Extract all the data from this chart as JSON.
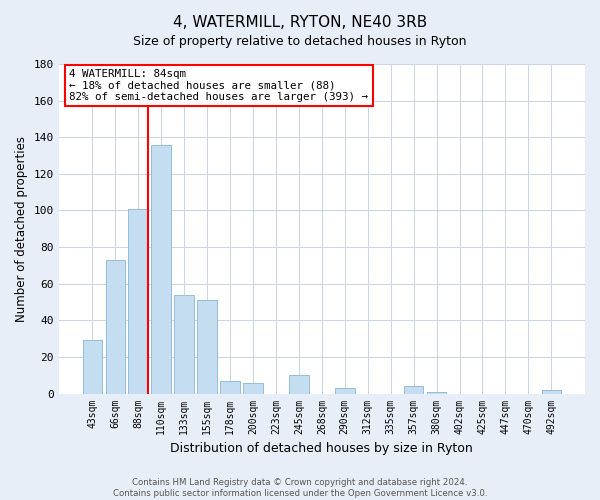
{
  "title": "4, WATERMILL, RYTON, NE40 3RB",
  "subtitle": "Size of property relative to detached houses in Ryton",
  "xlabel": "Distribution of detached houses by size in Ryton",
  "ylabel": "Number of detached properties",
  "bar_color": "#c5ddf0",
  "bar_edge_color": "#8ab4d4",
  "categories": [
    "43sqm",
    "66sqm",
    "88sqm",
    "110sqm",
    "133sqm",
    "155sqm",
    "178sqm",
    "200sqm",
    "223sqm",
    "245sqm",
    "268sqm",
    "290sqm",
    "312sqm",
    "335sqm",
    "357sqm",
    "380sqm",
    "402sqm",
    "425sqm",
    "447sqm",
    "470sqm",
    "492sqm"
  ],
  "values": [
    29,
    73,
    101,
    136,
    54,
    51,
    7,
    6,
    0,
    10,
    0,
    3,
    0,
    0,
    4,
    1,
    0,
    0,
    0,
    0,
    2
  ],
  "ylim": [
    0,
    180
  ],
  "yticks": [
    0,
    20,
    40,
    60,
    80,
    100,
    120,
    140,
    160,
    180
  ],
  "redline_bar_index": 2,
  "annotation_line1": "4 WATERMILL: 84sqm",
  "annotation_line2": "← 18% of detached houses are smaller (88)",
  "annotation_line3": "82% of semi-detached houses are larger (393) →",
  "annotation_box_facecolor": "white",
  "annotation_box_edgecolor": "red",
  "footer_line1": "Contains HM Land Registry data © Crown copyright and database right 2024.",
  "footer_line2": "Contains public sector information licensed under the Open Government Licence v3.0.",
  "background_color": "#e8eef7",
  "plot_bg_color": "white",
  "grid_color": "#c8d4e4",
  "title_fontsize": 11,
  "subtitle_fontsize": 9
}
